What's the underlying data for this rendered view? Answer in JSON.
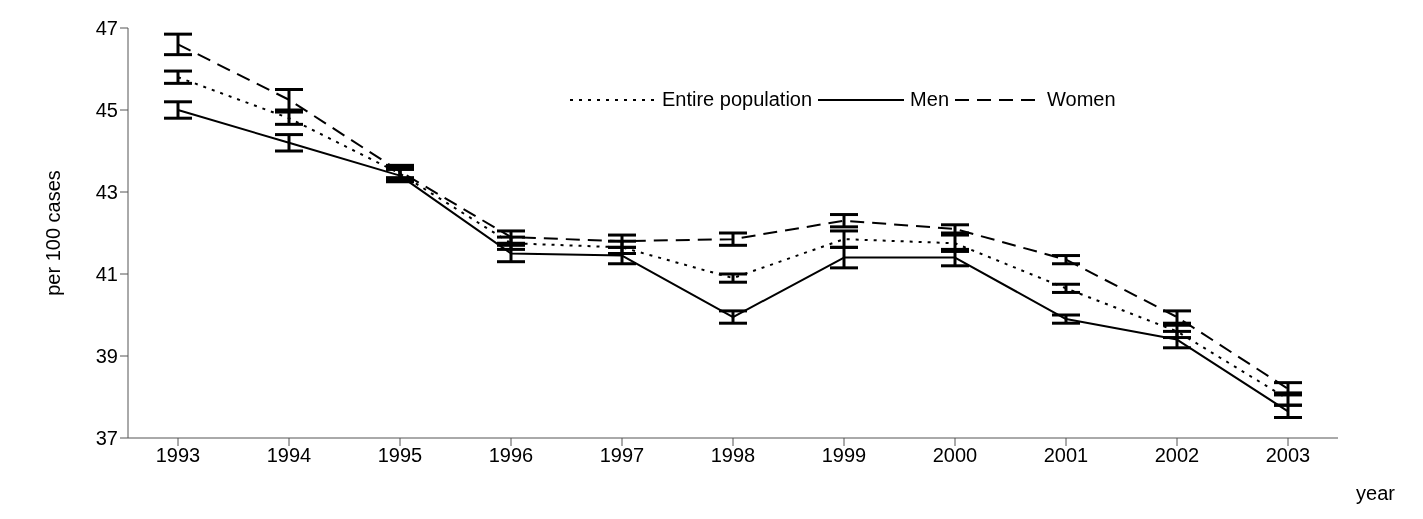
{
  "chart_data": {
    "type": "line",
    "xlabel": "year",
    "ylabel": "per 100 cases",
    "categories": [
      "1993",
      "1994",
      "1995",
      "1996",
      "1997",
      "1998",
      "1999",
      "2000",
      "2001",
      "2002",
      "2003"
    ],
    "series": [
      {
        "name": "Entire population",
        "color": "#000000",
        "line_style": "dotted",
        "values": [
          45.8,
          44.8,
          43.45,
          41.75,
          41.65,
          40.9,
          41.85,
          41.75,
          40.65,
          39.6,
          37.95
        ],
        "errors": [
          0.15,
          0.15,
          0.15,
          0.15,
          0.15,
          0.1,
          0.2,
          0.2,
          0.1,
          0.15,
          0.15
        ]
      },
      {
        "name": "Men",
        "color": "#000000",
        "line_style": "solid",
        "values": [
          45.0,
          44.2,
          43.4,
          41.5,
          41.45,
          39.95,
          41.4,
          41.4,
          39.9,
          39.4,
          37.65
        ],
        "errors": [
          0.2,
          0.2,
          0.15,
          0.2,
          0.2,
          0.15,
          0.25,
          0.2,
          0.1,
          0.2,
          0.15
        ]
      },
      {
        "name": "Women",
        "color": "#000000",
        "line_style": "dashed",
        "values": [
          46.6,
          45.25,
          43.5,
          41.9,
          41.8,
          41.85,
          42.3,
          42.1,
          41.35,
          39.95,
          38.2
        ],
        "errors": [
          0.25,
          0.25,
          0.15,
          0.15,
          0.15,
          0.15,
          0.15,
          0.1,
          0.1,
          0.15,
          0.15
        ]
      }
    ],
    "ylim": [
      37,
      47
    ],
    "yticks": [
      37,
      39,
      41,
      43,
      45,
      47
    ],
    "grid": false,
    "legend": "top right",
    "marker": "none"
  }
}
